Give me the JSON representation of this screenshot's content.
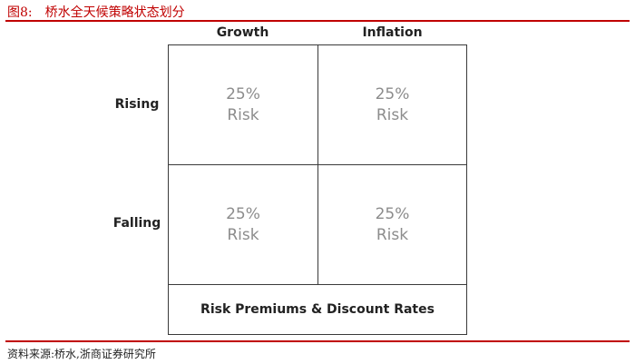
{
  "figure": {
    "number": "图8:",
    "title": "桥水全天候策略状态划分"
  },
  "columns": [
    "Growth",
    "Inflation"
  ],
  "rows": [
    "Rising",
    "Falling"
  ],
  "cells": [
    [
      {
        "percent": "25%",
        "label": "Risk"
      },
      {
        "percent": "25%",
        "label": "Risk"
      }
    ],
    [
      {
        "percent": "25%",
        "label": "Risk"
      },
      {
        "percent": "25%",
        "label": "Risk"
      }
    ]
  ],
  "footer_box": "Risk Premiums & Discount Rates",
  "source": "资料来源:桥水,浙商证券研究所",
  "colors": {
    "title_red": "#c00000",
    "cell_text_gray": "#8c8c8c",
    "border": "#3a3a3a"
  }
}
